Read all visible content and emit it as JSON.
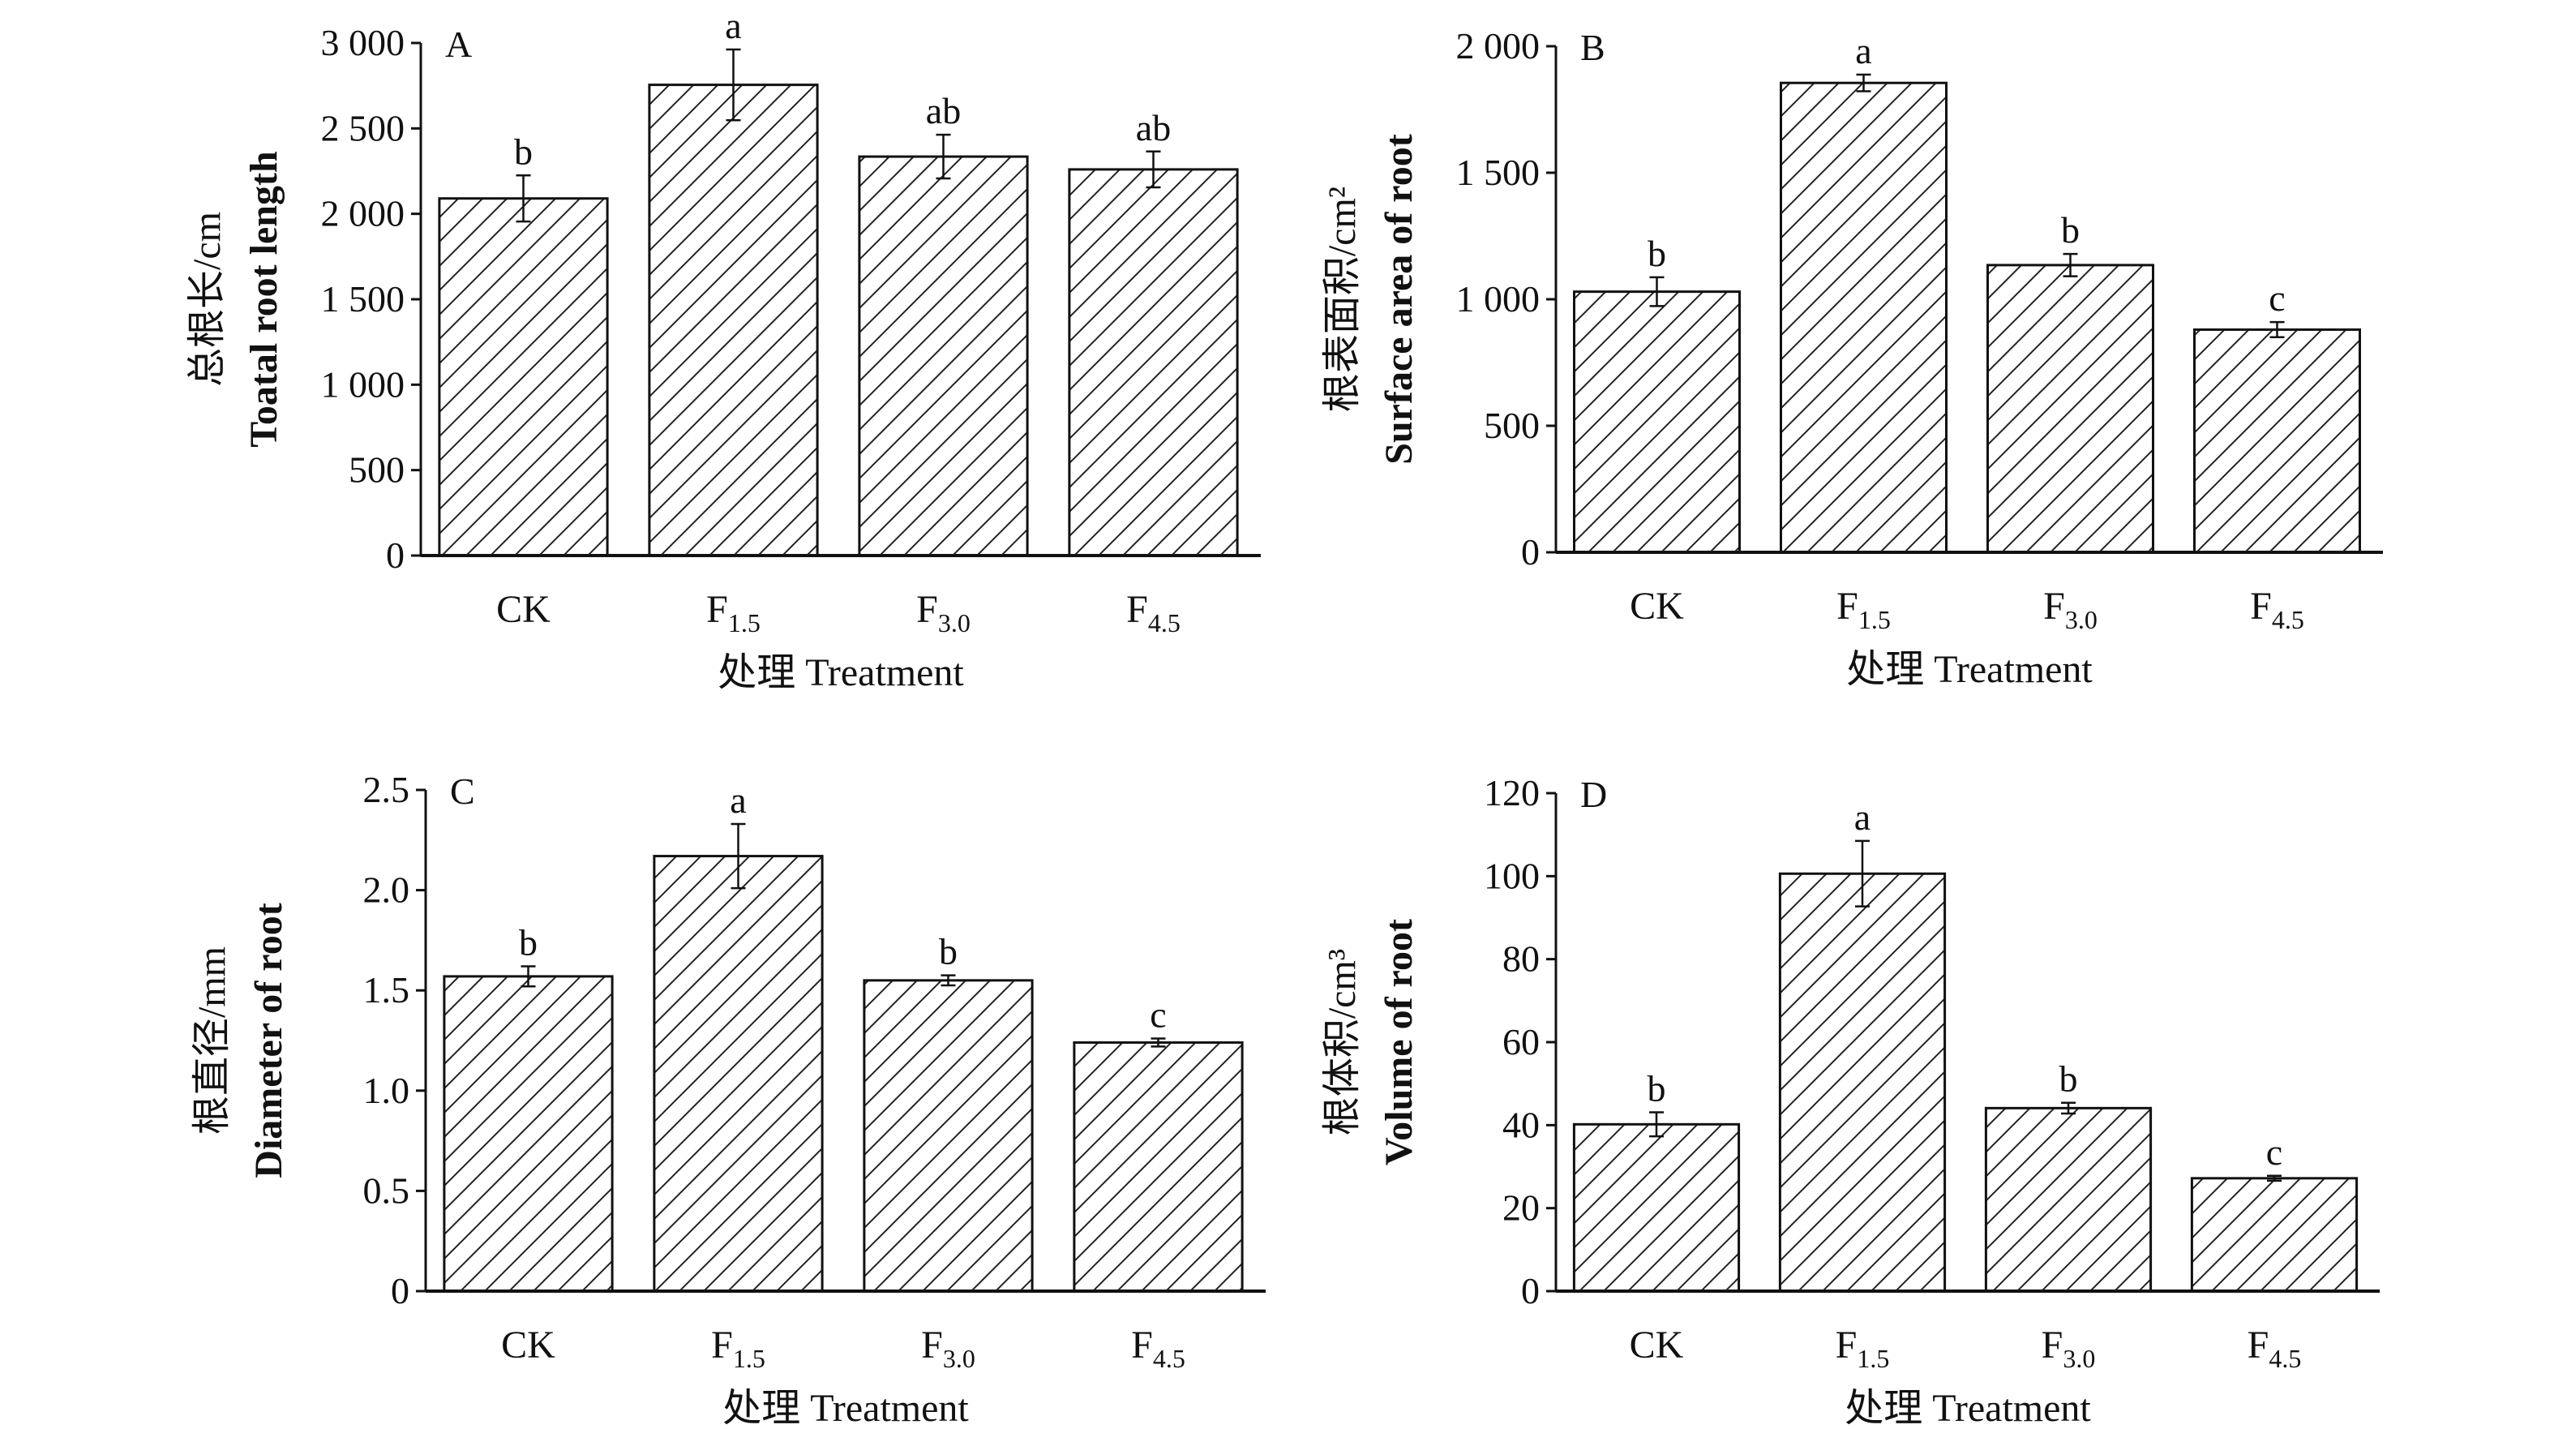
{
  "chart_data": [
    {
      "type": "bar",
      "panel_label": "A",
      "categories": [
        "CK",
        "F1.5",
        "F3.0",
        "F4.5"
      ],
      "values": [
        2090,
        2755,
        2335,
        2260
      ],
      "errors": [
        135,
        207,
        128,
        105
      ],
      "significance": [
        "b",
        "a",
        "ab",
        "ab"
      ],
      "ylabel_cn": "总根长/cm",
      "ylabel_en": "Toatal root length",
      "xlabel": "处理 Treatment",
      "ylim": [
        0,
        3000
      ],
      "yticks": [
        0,
        500,
        1000,
        1500,
        2000,
        2500,
        3000
      ],
      "ytick_labels": [
        "0",
        "500",
        "1 000",
        "1 500",
        "2 000",
        "2 500",
        "3 000"
      ],
      "grid": false
    },
    {
      "type": "bar",
      "panel_label": "B",
      "categories": [
        "CK",
        "F1.5",
        "F3.0",
        "F4.5"
      ],
      "values": [
        1030,
        1855,
        1135,
        880
      ],
      "errors": [
        57,
        33,
        44,
        30
      ],
      "significance": [
        "b",
        "a",
        "b",
        "c"
      ],
      "ylabel_cn": "根表面积/cm²",
      "ylabel_en": "Surface area of root",
      "xlabel": "处理 Treatment",
      "ylim": [
        0,
        2000
      ],
      "yticks": [
        0,
        500,
        1000,
        1500,
        2000
      ],
      "ytick_labels": [
        "0",
        "500",
        "1 000",
        "1 500",
        "2 000"
      ],
      "grid": false
    },
    {
      "type": "bar",
      "panel_label": "C",
      "categories": [
        "CK",
        "F1.5",
        "F3.0",
        "F4.5"
      ],
      "values": [
        1.57,
        2.17,
        1.55,
        1.24
      ],
      "errors": [
        0.05,
        0.16,
        0.025,
        0.02
      ],
      "significance": [
        "b",
        "a",
        "b",
        "c"
      ],
      "ylabel_cn": "根直径/mm",
      "ylabel_en": "Diameter of root",
      "xlabel": "处理 Treatment",
      "ylim": [
        0,
        2.5
      ],
      "yticks": [
        0,
        0.5,
        1.0,
        1.5,
        2.0,
        2.5
      ],
      "ytick_labels": [
        "0",
        "0.5",
        "1.0",
        "1.5",
        "2.0",
        "2.5"
      ],
      "grid": false
    },
    {
      "type": "bar",
      "panel_label": "D",
      "categories": [
        "CK",
        "F1.5",
        "F3.0",
        "F4.5"
      ],
      "values": [
        40.2,
        100.6,
        44.1,
        27.2
      ],
      "errors": [
        2.9,
        7.9,
        1.3,
        0.6
      ],
      "significance": [
        "b",
        "a",
        "b",
        "c"
      ],
      "ylabel_cn": "根体积/cm³",
      "ylabel_en": "Volume of root",
      "xlabel": "处理 Treatment",
      "ylim": [
        0,
        120
      ],
      "yticks": [
        0,
        20,
        40,
        60,
        80,
        100,
        120
      ],
      "ytick_labels": [
        "0",
        "20",
        "40",
        "60",
        "80",
        "100",
        "120"
      ],
      "grid": false
    }
  ]
}
